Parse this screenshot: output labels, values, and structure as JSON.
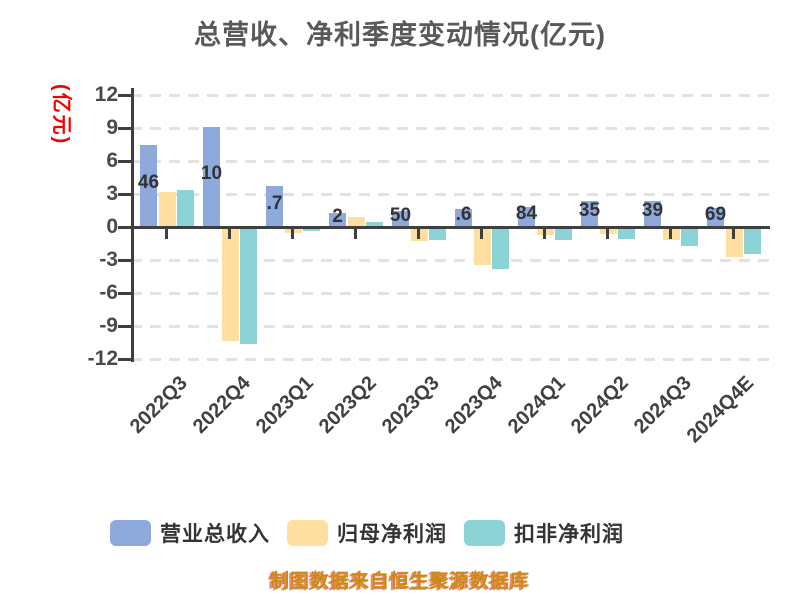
{
  "title": "总营收、净利季度变动情况(亿元)",
  "y_axis": {
    "unit": "(亿元)",
    "unit_color": "#f40000",
    "ticks": [
      12,
      9,
      6,
      3,
      0,
      -3,
      -6,
      -9,
      -12
    ],
    "range": [
      -12,
      12
    ]
  },
  "chart_data": {
    "type": "bar",
    "title": "总营收、净利季度变动情况(亿元)",
    "categories": [
      "2022Q3",
      "2022Q4",
      "2023Q1",
      "2023Q2",
      "2023Q3",
      "2023Q4",
      "2024Q1",
      "2024Q2",
      "2024Q3",
      "2024Q4E"
    ],
    "series": [
      {
        "name": "营业总收入",
        "key": "revenue",
        "color": "#8EA9DB",
        "values": [
          7.46,
          9.1,
          3.7,
          1.3,
          1.5,
          1.6,
          1.84,
          2.35,
          2.39,
          1.69
        ]
      },
      {
        "name": "归母净利润",
        "key": "net-profit",
        "color": "#FFDF9F",
        "values": [
          3.2,
          -10.2,
          -0.4,
          0.9,
          -1.1,
          -3.3,
          -0.55,
          -0.45,
          -1.0,
          -2.55
        ]
      },
      {
        "name": "扣非净利润",
        "key": "non-gaap-profit",
        "color": "#8CD3D6",
        "values": [
          3.4,
          -10.45,
          -0.2,
          0.45,
          -1.0,
          -3.6,
          -1.0,
          -0.9,
          -1.5,
          -2.3
        ]
      }
    ],
    "bar_label_fragments": [
      "46",
      "10",
      ".7",
      "2",
      "50",
      ".6",
      "84",
      "35",
      "39",
      "69"
    ],
    "ylim": [
      -12,
      12
    ],
    "grid": "horizontal-dashed",
    "legend_position": "bottom"
  },
  "legend": {
    "items": [
      {
        "label": "营业总收入",
        "color": "#8EA9DB"
      },
      {
        "label": "归母净利润",
        "color": "#FFDF9F"
      },
      {
        "label": "扣非净利润",
        "color": "#8CD3D6"
      }
    ]
  },
  "footer": "制图数据来自恒生聚源数据库",
  "colors": {
    "title": "#595959",
    "axis": "#3f3f3f",
    "tick_text": "#4a4a4a",
    "gridline": "#e2e2e2",
    "unit_label": "#f40000",
    "footer_text": "#cd8a12"
  }
}
